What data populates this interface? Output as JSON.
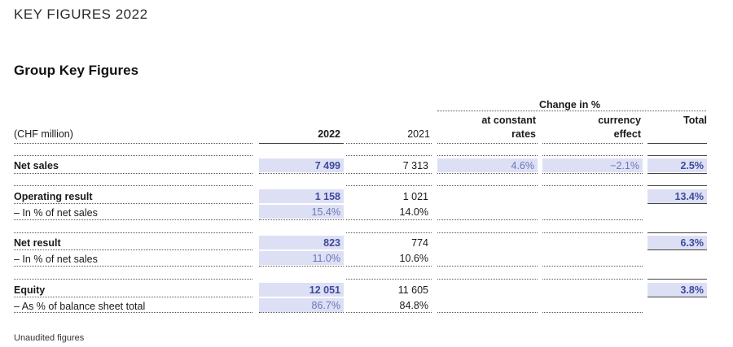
{
  "page_header": "KEY FIGURES 2022",
  "section_title": "Group Key Figures",
  "table": {
    "unit_label": "(CHF million)",
    "col_2022": "2022",
    "col_2021": "2021",
    "change_header": "Change in %",
    "col_constant_line1": "at constant",
    "col_constant_line2": "rates",
    "col_currency_line1": "currency",
    "col_currency_line2": "effect",
    "col_total": "Total",
    "rows": [
      {
        "label": "Net sales",
        "v2022": "7 499",
        "v2021": "7 313",
        "constant": "4.6%",
        "currency": "−2.1%",
        "total": "2.5%"
      },
      {
        "label": "Operating result",
        "v2022": "1 158",
        "v2021": "1 021",
        "total": "13.4%"
      },
      {
        "label": "– In % of net sales",
        "v2022": "15.4%",
        "v2021": "14.0%"
      },
      {
        "label": "Net result",
        "v2022": "823",
        "v2021": "774",
        "total": "6.3%"
      },
      {
        "label": "– In % of net sales",
        "v2022": "11.0%",
        "v2021": "10.6%"
      },
      {
        "label": "Equity",
        "v2022": "12 051",
        "v2021": "11 605",
        "total": "3.8%"
      },
      {
        "label": "– As % of balance sheet total",
        "v2022": "86.7%",
        "v2021": "84.8%"
      }
    ]
  },
  "footnote": "Unaudited figures"
}
